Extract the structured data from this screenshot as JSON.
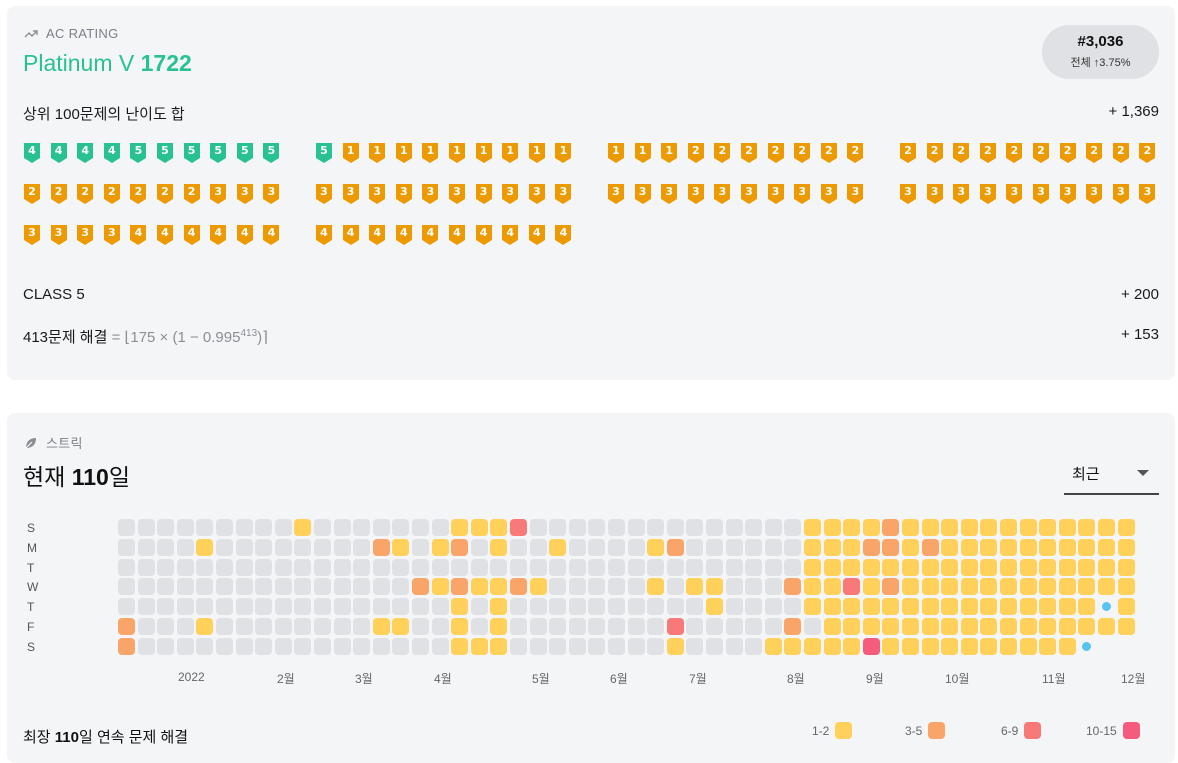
{
  "rating": {
    "section_label": "AC RATING",
    "tier_name": "Platinum V",
    "tier_rating": "1722",
    "rank": "#3,036",
    "rank_sub": "전체 ↑3.75%",
    "top100_label": "상위 100문제의 난이도 합",
    "top100_value": "+ 1,369",
    "class_label": "CLASS 5",
    "class_value": "+ 200",
    "solved_prefix": "413문제 해결",
    "solved_formula_a": " = ⌊175 × (1 − 0.995",
    "solved_formula_exp": "413",
    "solved_formula_b": ")⌉",
    "solved_value": "+ 153",
    "colors": {
      "platinum": "#27c28f",
      "gold": "#ec9a00"
    },
    "badges": [
      [
        4,
        4,
        4,
        4,
        5,
        5,
        5,
        5,
        5,
        5,
        5,
        1,
        1,
        1,
        1,
        1,
        1,
        1,
        1,
        1,
        1,
        1,
        1,
        2,
        2,
        2,
        2,
        2,
        2,
        2,
        2,
        2,
        2,
        2,
        2,
        2,
        2,
        2,
        2,
        2
      ],
      [
        2,
        2,
        2,
        2,
        2,
        2,
        2,
        3,
        3,
        3,
        3,
        3,
        3,
        3,
        3,
        3,
        3,
        3,
        3,
        3,
        3,
        3,
        3,
        3,
        3,
        3,
        3,
        3,
        3,
        3,
        3,
        3,
        3,
        3,
        3,
        3,
        3,
        3,
        3,
        3
      ],
      [
        3,
        3,
        3,
        3,
        4,
        4,
        4,
        4,
        4,
        4,
        4,
        4,
        4,
        4,
        4,
        4,
        4,
        4,
        4,
        4
      ]
    ],
    "badge_tiers": [
      [
        "p",
        "p",
        "p",
        "p",
        "p",
        "p",
        "p",
        "p",
        "p",
        "p",
        "p",
        "g",
        "g",
        "g",
        "g",
        "g",
        "g",
        "g",
        "g",
        "g",
        "g",
        "g",
        "g",
        "g",
        "g",
        "g",
        "g",
        "g",
        "g",
        "g",
        "g",
        "g",
        "g",
        "g",
        "g",
        "g",
        "g",
        "g",
        "g",
        "g"
      ],
      [
        "g",
        "g",
        "g",
        "g",
        "g",
        "g",
        "g",
        "g",
        "g",
        "g",
        "g",
        "g",
        "g",
        "g",
        "g",
        "g",
        "g",
        "g",
        "g",
        "g",
        "g",
        "g",
        "g",
        "g",
        "g",
        "g",
        "g",
        "g",
        "g",
        "g",
        "g",
        "g",
        "g",
        "g",
        "g",
        "g",
        "g",
        "g",
        "g",
        "g"
      ],
      [
        "g",
        "g",
        "g",
        "g",
        "g",
        "g",
        "g",
        "g",
        "g",
        "g",
        "g",
        "g",
        "g",
        "g",
        "g",
        "g",
        "g",
        "g",
        "g",
        "g"
      ]
    ]
  },
  "streak": {
    "section_label": "스트릭",
    "current_prefix": "현재 ",
    "current_value": "110",
    "current_suffix": "일",
    "select_value": "최근",
    "days": [
      "S",
      "M",
      "T",
      "W",
      "T",
      "F",
      "S"
    ],
    "months": [
      "2022",
      "2월",
      "3월",
      "4월",
      "5월",
      "6월",
      "7월",
      "8월",
      "9월",
      "10월",
      "11월",
      "12월"
    ],
    "longest_prefix": "최장 ",
    "longest_value": "110",
    "longest_suffix": "일 연속 문제 해결",
    "legend": [
      {
        "label": "1-2",
        "color": "#ffd15b"
      },
      {
        "label": "3-5",
        "color": "#f9a56a"
      },
      {
        "label": "6-9",
        "color": "#f87a78"
      },
      {
        "label": "10-15",
        "color": "#f45b7d"
      }
    ],
    "empty_color": "#e0e1e4",
    "cells": [
      [
        0,
        0,
        0,
        0,
        0,
        0,
        0,
        0,
        0,
        1,
        0,
        0,
        0,
        0,
        0,
        0,
        0,
        1,
        1,
        1,
        3,
        0,
        0,
        0,
        0,
        0,
        0,
        0,
        0,
        0,
        0,
        0,
        0,
        0,
        0,
        1,
        1,
        1,
        1,
        2,
        1,
        1,
        1,
        1,
        1,
        1,
        1,
        1,
        1,
        1,
        1,
        1
      ],
      [
        0,
        0,
        0,
        0,
        1,
        0,
        0,
        0,
        0,
        0,
        0,
        0,
        0,
        2,
        1,
        0,
        1,
        2,
        0,
        1,
        0,
        0,
        1,
        0,
        0,
        0,
        0,
        1,
        2,
        0,
        0,
        0,
        0,
        0,
        0,
        1,
        1,
        1,
        2,
        2,
        1,
        2,
        1,
        1,
        1,
        1,
        1,
        1,
        1,
        1,
        1,
        1
      ],
      [
        0,
        0,
        0,
        0,
        0,
        0,
        0,
        0,
        0,
        0,
        0,
        0,
        0,
        0,
        0,
        0,
        0,
        0,
        0,
        0,
        0,
        0,
        0,
        0,
        0,
        0,
        0,
        0,
        0,
        0,
        0,
        0,
        0,
        0,
        0,
        1,
        1,
        1,
        1,
        1,
        1,
        1,
        1,
        1,
        1,
        1,
        1,
        1,
        1,
        1,
        1,
        1
      ],
      [
        0,
        0,
        0,
        0,
        0,
        0,
        0,
        0,
        0,
        0,
        0,
        0,
        0,
        0,
        0,
        2,
        1,
        2,
        1,
        1,
        2,
        1,
        0,
        0,
        0,
        0,
        0,
        1,
        0,
        1,
        1,
        0,
        0,
        0,
        2,
        1,
        1,
        3,
        1,
        2,
        1,
        1,
        1,
        1,
        1,
        1,
        1,
        1,
        1,
        1,
        1,
        1
      ],
      [
        0,
        0,
        0,
        0,
        0,
        0,
        0,
        0,
        0,
        0,
        0,
        0,
        0,
        0,
        0,
        0,
        0,
        1,
        0,
        1,
        0,
        0,
        0,
        0,
        0,
        0,
        0,
        0,
        0,
        0,
        1,
        0,
        0,
        0,
        0,
        1,
        1,
        1,
        1,
        1,
        1,
        1,
        1,
        1,
        1,
        1,
        1,
        1,
        1,
        1,
        9,
        1
      ],
      [
        2,
        0,
        0,
        0,
        1,
        0,
        0,
        0,
        0,
        0,
        0,
        0,
        0,
        1,
        1,
        0,
        0,
        1,
        0,
        1,
        0,
        0,
        0,
        0,
        0,
        0,
        0,
        0,
        3,
        0,
        0,
        0,
        0,
        0,
        2,
        0,
        1,
        1,
        1,
        1,
        1,
        1,
        1,
        1,
        1,
        1,
        1,
        1,
        1,
        1,
        1,
        1
      ],
      [
        2,
        0,
        0,
        0,
        0,
        0,
        0,
        0,
        0,
        0,
        0,
        0,
        0,
        0,
        0,
        0,
        0,
        1,
        1,
        1,
        0,
        0,
        0,
        0,
        0,
        0,
        0,
        0,
        1,
        0,
        0,
        0,
        0,
        1,
        1,
        1,
        1,
        1,
        4,
        1,
        1,
        1,
        1,
        1,
        1,
        1,
        1,
        1,
        1,
        9,
        -1,
        -1
      ]
    ]
  }
}
